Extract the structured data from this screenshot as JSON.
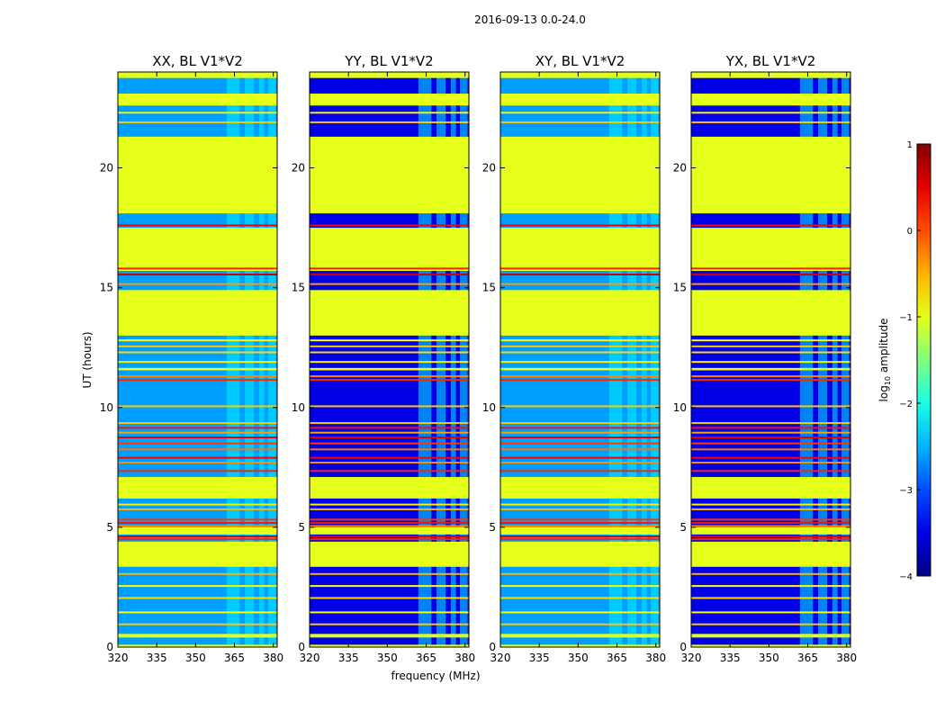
{
  "chart_data": {
    "type": "heatmap",
    "suptitle": "2016-09-13 0.0-24.0",
    "xlabel": "frequency (MHz)",
    "ylabel": "UT (hours)",
    "xlim": [
      320,
      381.5
    ],
    "ylim": [
      0,
      24
    ],
    "xticks": [
      320,
      335,
      350,
      365,
      380
    ],
    "yticks": [
      0,
      5,
      10,
      15,
      20
    ],
    "panels": [
      {
        "title": "XX, BL V1*V2",
        "polarization": "XX",
        "low_noise_level": -2.6
      },
      {
        "title": "YY, BL V1*V2",
        "polarization": "YY",
        "low_noise_level": -3.5
      },
      {
        "title": "XY, BL V1*V2",
        "polarization": "XY",
        "low_noise_level": -2.6
      },
      {
        "title": "YX, BL V1*V2",
        "polarization": "YX",
        "low_noise_level": -3.5
      }
    ],
    "uniform_bands_hours": [
      {
        "from": 0.0,
        "to": 0.1,
        "log_amp": -1.0
      },
      {
        "from": 0.4,
        "to": 0.55,
        "log_amp": -1.0
      },
      {
        "from": 3.35,
        "to": 4.4,
        "log_amp": -1.0
      },
      {
        "from": 4.7,
        "to": 5.0,
        "log_amp": -1.0
      },
      {
        "from": 6.2,
        "to": 7.1,
        "log_amp": -1.0
      },
      {
        "from": 11.55,
        "to": 11.65,
        "log_amp": -1.0
      },
      {
        "from": 13.0,
        "to": 14.9,
        "log_amp": -1.0
      },
      {
        "from": 15.7,
        "to": 17.5,
        "log_amp": -1.0
      },
      {
        "from": 18.1,
        "to": 21.3,
        "log_amp": -1.0
      },
      {
        "from": 22.6,
        "to": 23.1,
        "log_amp": -1.0
      },
      {
        "from": 23.75,
        "to": 24.0,
        "log_amp": -1.0
      }
    ],
    "rfi_lines_hours": [
      {
        "t": 0.95,
        "log_amp": -0.6
      },
      {
        "t": 1.45,
        "log_amp": -0.9
      },
      {
        "t": 2.05,
        "log_amp": -0.7
      },
      {
        "t": 2.55,
        "log_amp": -0.9
      },
      {
        "t": 3.05,
        "log_amp": -0.5
      },
      {
        "t": 4.5,
        "log_amp": 0.2
      },
      {
        "t": 4.62,
        "log_amp": 0.5
      },
      {
        "t": 5.05,
        "log_amp": -0.3
      },
      {
        "t": 5.18,
        "log_amp": 0.3
      },
      {
        "t": 5.32,
        "log_amp": 0.1
      },
      {
        "t": 5.75,
        "log_amp": -0.5
      },
      {
        "t": 5.95,
        "log_amp": -0.8
      },
      {
        "t": 7.35,
        "log_amp": 0.2
      },
      {
        "t": 7.7,
        "log_amp": -0.3
      },
      {
        "t": 7.9,
        "log_amp": 0.4
      },
      {
        "t": 8.25,
        "log_amp": -0.2
      },
      {
        "t": 8.5,
        "log_amp": 0.1
      },
      {
        "t": 8.75,
        "log_amp": 0.5
      },
      {
        "t": 8.95,
        "log_amp": -0.4
      },
      {
        "t": 9.15,
        "log_amp": 0.3
      },
      {
        "t": 9.35,
        "log_amp": -0.6
      },
      {
        "t": 10.05,
        "log_amp": -0.6
      },
      {
        "t": 11.15,
        "log_amp": 0.2
      },
      {
        "t": 11.3,
        "log_amp": -0.3
      },
      {
        "t": 11.9,
        "log_amp": -0.8
      },
      {
        "t": 12.3,
        "log_amp": -0.7
      },
      {
        "t": 12.55,
        "log_amp": -0.6
      },
      {
        "t": 12.8,
        "log_amp": -0.9
      },
      {
        "t": 15.15,
        "log_amp": -0.4
      },
      {
        "t": 15.55,
        "log_amp": 0.6
      },
      {
        "t": 15.8,
        "log_amp": 0.2
      },
      {
        "t": 17.6,
        "log_amp": 0.4
      },
      {
        "t": 21.9,
        "log_amp": -0.6
      },
      {
        "t": 22.3,
        "log_amp": -0.8
      }
    ],
    "rfi_channels_mhz": [
      {
        "from": 362,
        "to": 367
      },
      {
        "from": 369,
        "to": 372.5
      },
      {
        "from": 374.5,
        "to": 376.5
      },
      {
        "from": 378,
        "to": 381
      }
    ],
    "colorbar": {
      "label_prefix": "log",
      "label_sub": "10",
      "label_suffix": " amplitude",
      "range": [
        -4,
        1
      ],
      "ticks": [
        1,
        0,
        -1,
        -2,
        -3,
        -4
      ],
      "tick_labels": [
        "1",
        "0",
        "−1",
        "−2",
        "−3",
        "−4"
      ],
      "colormap": "jet"
    }
  }
}
